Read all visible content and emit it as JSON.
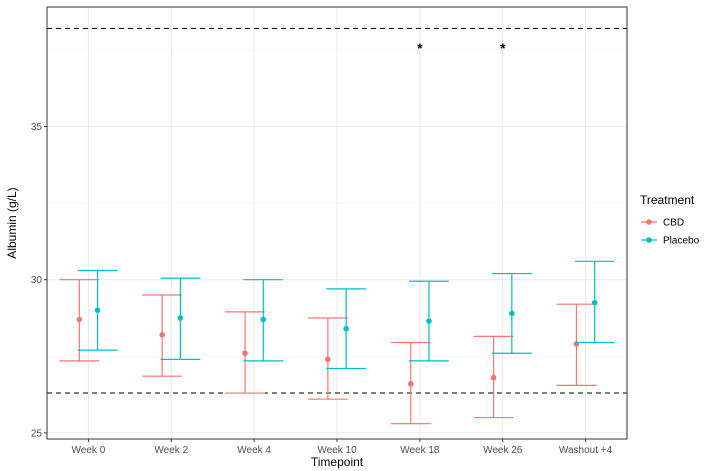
{
  "chart_data": {
    "type": "errorbar-point",
    "xlabel": "Timepoint",
    "ylabel": "Albumin (g/L)",
    "categories": [
      "Week 0",
      "Week 2",
      "Week 4",
      "Week 10",
      "Week 18",
      "Week 26",
      "Washout +4"
    ],
    "ylim": [
      24.8,
      38.9
    ],
    "yticks": [
      25,
      30,
      35
    ],
    "grid": true,
    "legend": {
      "title": "Treatment",
      "position": "right"
    },
    "series": [
      {
        "name": "CBD",
        "color": "#F8766D",
        "mean": [
          28.7,
          28.2,
          27.6,
          27.4,
          26.6,
          26.8,
          27.9
        ],
        "lower": [
          27.35,
          26.85,
          26.3,
          26.1,
          25.3,
          25.5,
          26.55
        ],
        "upper": [
          30.0,
          29.5,
          28.95,
          28.75,
          27.95,
          28.15,
          29.2
        ]
      },
      {
        "name": "Placebo",
        "color": "#00BFC4",
        "mean": [
          29.0,
          28.75,
          28.7,
          28.4,
          28.65,
          28.9,
          29.25
        ],
        "lower": [
          27.7,
          27.4,
          27.35,
          27.1,
          27.35,
          27.6,
          27.95
        ],
        "upper": [
          30.3,
          30.05,
          30.0,
          29.7,
          29.95,
          30.2,
          30.6
        ]
      }
    ],
    "reference_lines": [
      38.2,
      26.3
    ],
    "annotations": [
      {
        "category": "Week 18",
        "text": "*",
        "y": 37.6
      },
      {
        "category": "Week 26",
        "text": "*",
        "y": 37.6
      }
    ]
  }
}
